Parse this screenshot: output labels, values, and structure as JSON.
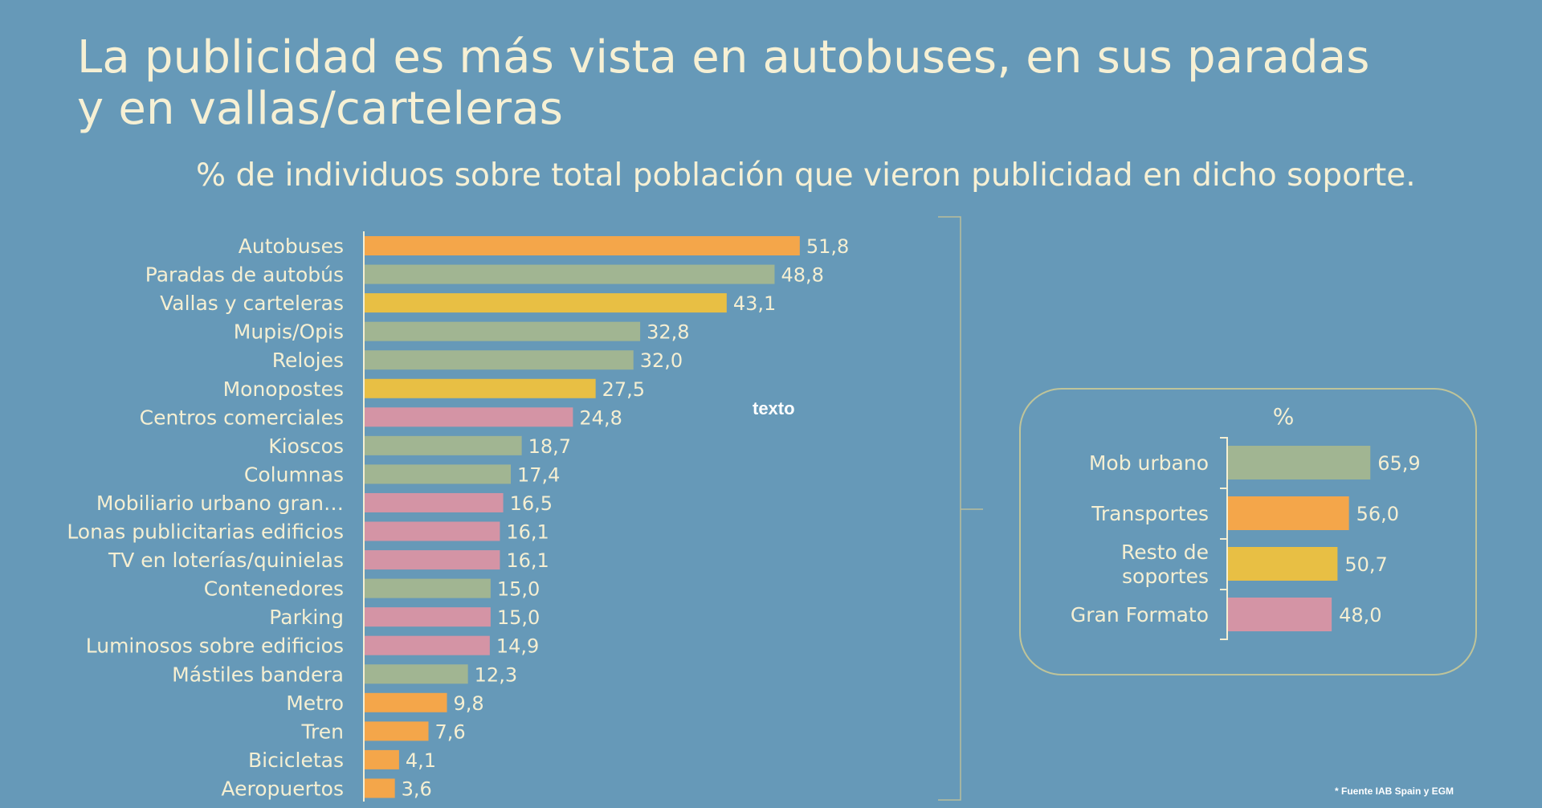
{
  "title_line1": "La publicidad es más vista en autobuses, en sus paradas",
  "title_line2": "y en vallas/carteleras",
  "subtitle": "% de individuos sobre total población que vieron publicidad en dicho soporte.",
  "annotation": "texto",
  "source": "* Fuente IAB Spain y EGM",
  "colors": {
    "background": "#6699b8",
    "orange": "#f4a64a",
    "green": "#a1b592",
    "yellow": "#e8bf44",
    "pink": "#d494a5",
    "text": "#f5efd2",
    "panel_border": "#bfc49a"
  },
  "chart_data": [
    {
      "type": "bar",
      "orientation": "horizontal",
      "categories": [
        "Autobuses",
        "Paradas de autobús",
        "Vallas y carteleras",
        "Mupis/Opis",
        "Relojes",
        "Monopostes",
        "Centros comerciales",
        "Kioscos",
        "Columnas",
        "Mobiliario urbano gran…",
        "Lonas publicitarias edificios",
        "TV en loterías/quinielas",
        "Contenedores",
        "Parking",
        "Luminosos sobre edificios",
        "Mástiles bandera",
        "Metro",
        "Tren",
        "Bicicletas",
        "Aeropuertos"
      ],
      "values": [
        51.8,
        48.8,
        43.1,
        32.8,
        32.0,
        27.5,
        24.8,
        18.7,
        17.4,
        16.5,
        16.1,
        16.1,
        15.0,
        15.0,
        14.9,
        12.3,
        9.8,
        7.6,
        4.1,
        3.6
      ],
      "value_labels": [
        "51,8",
        "48,8",
        "43,1",
        "32,8",
        "32,0",
        "27,5",
        "24,8",
        "18,7",
        "17,4",
        "16,5",
        "16,1",
        "16,1",
        "15,0",
        "15,0",
        "14,9",
        "12,3",
        "9,8",
        "7,6",
        "4,1",
        "3,6"
      ],
      "bar_colors": [
        "orange",
        "green",
        "yellow",
        "green",
        "green",
        "yellow",
        "pink",
        "green",
        "green",
        "pink",
        "pink",
        "pink",
        "green",
        "pink",
        "pink",
        "green",
        "orange",
        "orange",
        "orange",
        "orange"
      ],
      "xlim": [
        0,
        60
      ],
      "grid": false
    },
    {
      "type": "bar",
      "orientation": "horizontal",
      "title": "%",
      "categories": [
        "Mob urbano",
        "Transportes",
        "Resto de soportes",
        "Gran Formato"
      ],
      "category_lines": [
        [
          "Mob urbano"
        ],
        [
          "Transportes"
        ],
        [
          "Resto de",
          "soportes"
        ],
        [
          "Gran Formato"
        ]
      ],
      "values": [
        65.9,
        56.0,
        50.7,
        48.0
      ],
      "value_labels": [
        "65,9",
        "56,0",
        "50,7",
        "48,0"
      ],
      "bar_colors": [
        "green",
        "orange",
        "yellow",
        "pink"
      ],
      "xlim": [
        0,
        100
      ],
      "grid": false
    }
  ]
}
